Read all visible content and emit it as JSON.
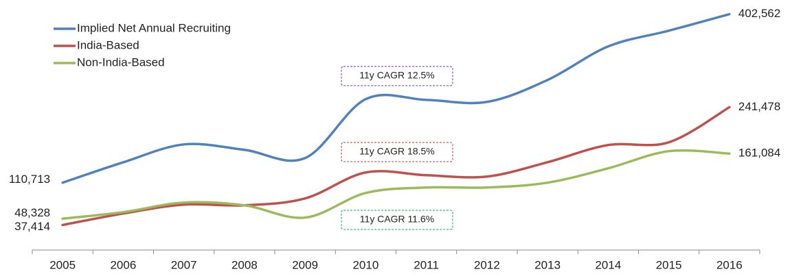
{
  "chart_data": {
    "type": "line",
    "categories": [
      "2005",
      "2006",
      "2007",
      "2008",
      "2009",
      "2010",
      "2011",
      "2012",
      "2013",
      "2014",
      "2015",
      "2016"
    ],
    "ylim": [
      0,
      420000
    ],
    "legend": "upper left",
    "series": [
      {
        "name": "Implied Net Annual Recruiting",
        "color": "#4f81bd",
        "values": [
          110713,
          146000,
          177000,
          167600,
          153300,
          255400,
          254100,
          250600,
          288600,
          346700,
          374000,
          402562
        ],
        "value_labels": [
          "110,713",
          null,
          null,
          null,
          null,
          null,
          null,
          null,
          null,
          null,
          null,
          "402,562"
        ],
        "cagr_label": "11y CAGR 12.5%",
        "cagr_color": "#7030a0"
      },
      {
        "name": "India-Based",
        "color": "#c0504d",
        "values": [
          37414,
          57300,
          72700,
          71500,
          83400,
          128400,
          123700,
          121300,
          146200,
          175900,
          180600,
          241478
        ],
        "value_labels": [
          "37,414",
          null,
          null,
          null,
          null,
          null,
          null,
          null,
          null,
          null,
          null,
          "241,478"
        ],
        "cagr_label": "11y CAGR 18.5%",
        "cagr_color": "#a0403c"
      },
      {
        "name": "Non-India-Based",
        "color": "#9bbb59",
        "values": [
          48328,
          59700,
          76300,
          71500,
          50200,
          92900,
          102400,
          102400,
          110700,
          135600,
          165300,
          161084
        ],
        "value_labels": [
          "48,328",
          null,
          null,
          null,
          null,
          null,
          null,
          null,
          null,
          null,
          null,
          "161,084"
        ],
        "cagr_label": "11y CAGR 11.6%",
        "cagr_color": "#00b050"
      }
    ]
  }
}
